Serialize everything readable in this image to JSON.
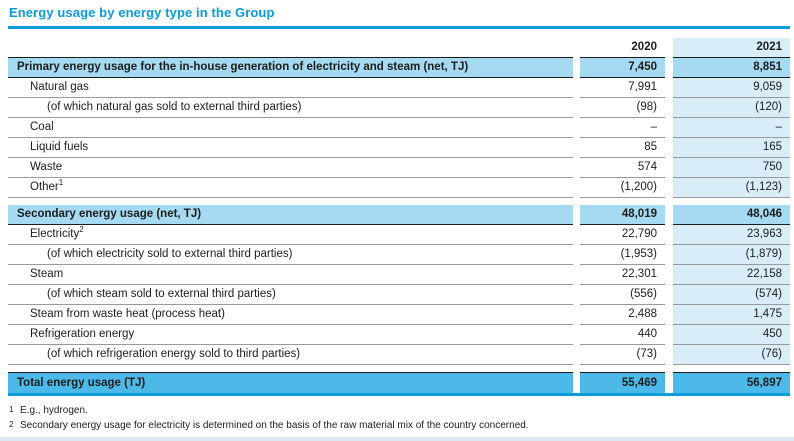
{
  "title": "Energy usage by energy type in the Group",
  "columns": [
    "2020",
    "2021"
  ],
  "rows": [
    {
      "type": "section",
      "label": "Primary energy usage for the in-house generation of electricity and steam (net, TJ)",
      "v2020": "7,450",
      "v2021": "8,851"
    },
    {
      "type": "data",
      "indent": 1,
      "label": "Natural gas",
      "v2020": "7,991",
      "v2021": "9,059"
    },
    {
      "type": "data",
      "indent": 2,
      "label": "(of which natural gas sold to external third parties)",
      "v2020": "(98)",
      "v2021": "(120)"
    },
    {
      "type": "data",
      "indent": 1,
      "label": "Coal",
      "v2020": "–",
      "v2021": "–"
    },
    {
      "type": "data",
      "indent": 1,
      "label": "Liquid fuels",
      "v2020": "85",
      "v2021": "165"
    },
    {
      "type": "data",
      "indent": 1,
      "label": "Waste",
      "v2020": "574",
      "v2021": "750"
    },
    {
      "type": "data",
      "indent": 1,
      "label": "Other",
      "sup": "1",
      "v2020": "(1,200)",
      "v2021": "(1,123)"
    },
    {
      "type": "section",
      "label": "Secondary energy usage (net, TJ)",
      "v2020": "48,019",
      "v2021": "48,046"
    },
    {
      "type": "data",
      "indent": 1,
      "label": "Electricity",
      "sup": "2",
      "v2020": "22,790",
      "v2021": "23,963"
    },
    {
      "type": "data",
      "indent": 2,
      "label": "(of which electricity sold to external third parties)",
      "v2020": "(1,953)",
      "v2021": "(1,879)"
    },
    {
      "type": "data",
      "indent": 1,
      "label": "Steam",
      "v2020": "22,301",
      "v2021": "22,158"
    },
    {
      "type": "data",
      "indent": 2,
      "label": "(of which steam sold to external third parties)",
      "v2020": "(556)",
      "v2021": "(574)"
    },
    {
      "type": "data",
      "indent": 1,
      "label": "Steam from waste heat (process heat)",
      "v2020": "2,488",
      "v2021": "1,475"
    },
    {
      "type": "data",
      "indent": 1,
      "label": "Refrigeration energy",
      "v2020": "440",
      "v2021": "450"
    },
    {
      "type": "data",
      "indent": 2,
      "label": "(of which refrigeration energy sold to third parties)",
      "v2020": "(73)",
      "v2021": "(76)"
    },
    {
      "type": "total",
      "label": "Total energy usage (TJ)",
      "v2020": "55,469",
      "v2021": "56,897"
    }
  ],
  "footnotes": [
    {
      "marker": "1",
      "text": "E.g., hydrogen."
    },
    {
      "marker": "2",
      "text": "Secondary energy usage for electricity is determined on the basis of the raw material mix of the country concerned."
    }
  ],
  "colors": {
    "accent_blue": "#0a9bd8",
    "section_row_bg": "#a6d9f2",
    "total_row_bg": "#4db9e9",
    "column_2021_bg": "#d9edf8",
    "border_dark": "#1d1d1b",
    "border_gray": "#9a9a9a",
    "bottom_strip": "#d9e8f3"
  },
  "chart_data": {
    "type": "table",
    "title": "Energy usage by energy type in the Group",
    "columns": [
      "2020",
      "2021"
    ],
    "rows": [
      [
        "Primary energy usage for the in-house generation of electricity and steam (net, TJ)",
        7450,
        8851
      ],
      [
        "Natural gas",
        7991,
        9059
      ],
      [
        "(of which natural gas sold to external third parties)",
        -98,
        -120
      ],
      [
        "Coal",
        null,
        null
      ],
      [
        "Liquid fuels",
        85,
        165
      ],
      [
        "Waste",
        574,
        750
      ],
      [
        "Other",
        -1200,
        -1123
      ],
      [
        "Secondary energy usage (net, TJ)",
        48019,
        48046
      ],
      [
        "Electricity",
        22790,
        23963
      ],
      [
        "(of which electricity sold to external third parties)",
        -1953,
        -1879
      ],
      [
        "Steam",
        22301,
        22158
      ],
      [
        "(of which steam sold to external third parties)",
        -556,
        -574
      ],
      [
        "Steam from waste heat (process heat)",
        2488,
        1475
      ],
      [
        "Refrigeration energy",
        440,
        450
      ],
      [
        "(of which refrigeration energy sold to third parties)",
        -73,
        -76
      ],
      [
        "Total energy usage (TJ)",
        55469,
        56897
      ]
    ]
  }
}
